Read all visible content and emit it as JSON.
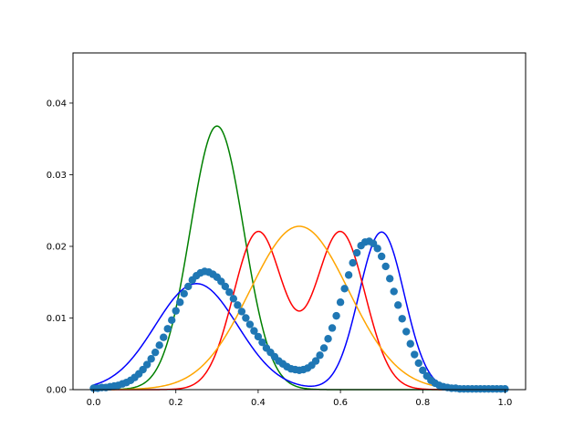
{
  "chart_data": {
    "type": "line",
    "title": "",
    "xlabel": "",
    "ylabel": "",
    "xlim": [
      -0.05,
      1.05
    ],
    "ylim": [
      0,
      0.047
    ],
    "grid": false,
    "x_ticks": [
      "0.0",
      "0.2",
      "0.4",
      "0.6",
      "0.8",
      "1.0"
    ],
    "y_ticks": [
      "0.00",
      "0.01",
      "0.02",
      "0.03",
      "0.04"
    ],
    "series": [
      {
        "kind": "gaussian_mixture",
        "color": "#008000",
        "components": [
          {
            "mu": 0.3,
            "sigma": 0.065,
            "peak": 0.0368
          }
        ]
      },
      {
        "kind": "gaussian_mixture",
        "color": "#0000ff",
        "components": [
          {
            "mu": 0.25,
            "sigma": 0.1,
            "peak": 0.0148
          },
          {
            "mu": 0.7,
            "sigma": 0.055,
            "peak": 0.022
          }
        ]
      },
      {
        "kind": "gaussian_mixture",
        "color": "#ff0000",
        "components": [
          {
            "mu": 0.4,
            "sigma": 0.06,
            "peak": 0.022
          },
          {
            "mu": 0.6,
            "sigma": 0.06,
            "peak": 0.022
          }
        ]
      },
      {
        "kind": "gaussian_mixture",
        "color": "#ffa500",
        "components": [
          {
            "mu": 0.5,
            "sigma": 0.12,
            "peak": 0.0228
          }
        ]
      }
    ],
    "scatter": {
      "color": "#1f77b4",
      "points": [
        [
          0.0,
          0.0002
        ],
        [
          0.01,
          0.0002
        ],
        [
          0.02,
          0.0003
        ],
        [
          0.03,
          0.0003
        ],
        [
          0.04,
          0.0004
        ],
        [
          0.05,
          0.0005
        ],
        [
          0.06,
          0.0006
        ],
        [
          0.07,
          0.0008
        ],
        [
          0.08,
          0.001
        ],
        [
          0.09,
          0.0013
        ],
        [
          0.1,
          0.0017
        ],
        [
          0.11,
          0.0022
        ],
        [
          0.12,
          0.0028
        ],
        [
          0.13,
          0.0035
        ],
        [
          0.14,
          0.0043
        ],
        [
          0.15,
          0.0052
        ],
        [
          0.16,
          0.0062
        ],
        [
          0.17,
          0.0073
        ],
        [
          0.18,
          0.0085
        ],
        [
          0.19,
          0.0097
        ],
        [
          0.2,
          0.011
        ],
        [
          0.21,
          0.0122
        ],
        [
          0.22,
          0.0134
        ],
        [
          0.23,
          0.0144
        ],
        [
          0.24,
          0.0153
        ],
        [
          0.25,
          0.0159
        ],
        [
          0.26,
          0.0163
        ],
        [
          0.27,
          0.0165
        ],
        [
          0.28,
          0.0164
        ],
        [
          0.29,
          0.0161
        ],
        [
          0.3,
          0.0157
        ],
        [
          0.31,
          0.0151
        ],
        [
          0.32,
          0.0144
        ],
        [
          0.33,
          0.0136
        ],
        [
          0.34,
          0.0127
        ],
        [
          0.35,
          0.0118
        ],
        [
          0.36,
          0.0109
        ],
        [
          0.37,
          0.01
        ],
        [
          0.38,
          0.0091
        ],
        [
          0.39,
          0.0082
        ],
        [
          0.4,
          0.0074
        ],
        [
          0.41,
          0.0066
        ],
        [
          0.42,
          0.0058
        ],
        [
          0.43,
          0.0052
        ],
        [
          0.44,
          0.0046
        ],
        [
          0.45,
          0.004
        ],
        [
          0.46,
          0.0036
        ],
        [
          0.47,
          0.0032
        ],
        [
          0.48,
          0.0029
        ],
        [
          0.49,
          0.0028
        ],
        [
          0.5,
          0.0027
        ],
        [
          0.51,
          0.0028
        ],
        [
          0.52,
          0.003
        ],
        [
          0.53,
          0.0034
        ],
        [
          0.54,
          0.004
        ],
        [
          0.55,
          0.0048
        ],
        [
          0.56,
          0.0058
        ],
        [
          0.57,
          0.0071
        ],
        [
          0.58,
          0.0086
        ],
        [
          0.59,
          0.0103
        ],
        [
          0.6,
          0.0122
        ],
        [
          0.61,
          0.0141
        ],
        [
          0.62,
          0.016
        ],
        [
          0.63,
          0.0177
        ],
        [
          0.64,
          0.0191
        ],
        [
          0.65,
          0.0201
        ],
        [
          0.66,
          0.0206
        ],
        [
          0.67,
          0.0207
        ],
        [
          0.68,
          0.0204
        ],
        [
          0.69,
          0.0197
        ],
        [
          0.7,
          0.0186
        ],
        [
          0.71,
          0.0172
        ],
        [
          0.72,
          0.0155
        ],
        [
          0.73,
          0.0137
        ],
        [
          0.74,
          0.0118
        ],
        [
          0.75,
          0.0099
        ],
        [
          0.76,
          0.0081
        ],
        [
          0.77,
          0.0064
        ],
        [
          0.78,
          0.0049
        ],
        [
          0.79,
          0.0037
        ],
        [
          0.8,
          0.0027
        ],
        [
          0.81,
          0.0019
        ],
        [
          0.82,
          0.0013
        ],
        [
          0.83,
          0.0009
        ],
        [
          0.84,
          0.0006
        ],
        [
          0.85,
          0.0004
        ],
        [
          0.86,
          0.0003
        ],
        [
          0.87,
          0.0002
        ],
        [
          0.88,
          0.0002
        ],
        [
          0.89,
          0.0001
        ],
        [
          0.9,
          0.0001
        ],
        [
          0.91,
          0.0001
        ],
        [
          0.92,
          0.0001
        ],
        [
          0.93,
          0.0001
        ],
        [
          0.94,
          0.0001
        ],
        [
          0.95,
          0.0001
        ],
        [
          0.96,
          0.0001
        ],
        [
          0.97,
          0.0001
        ],
        [
          0.98,
          0.0001
        ],
        [
          0.99,
          0.0001
        ],
        [
          1.0,
          0.0001
        ]
      ]
    }
  }
}
